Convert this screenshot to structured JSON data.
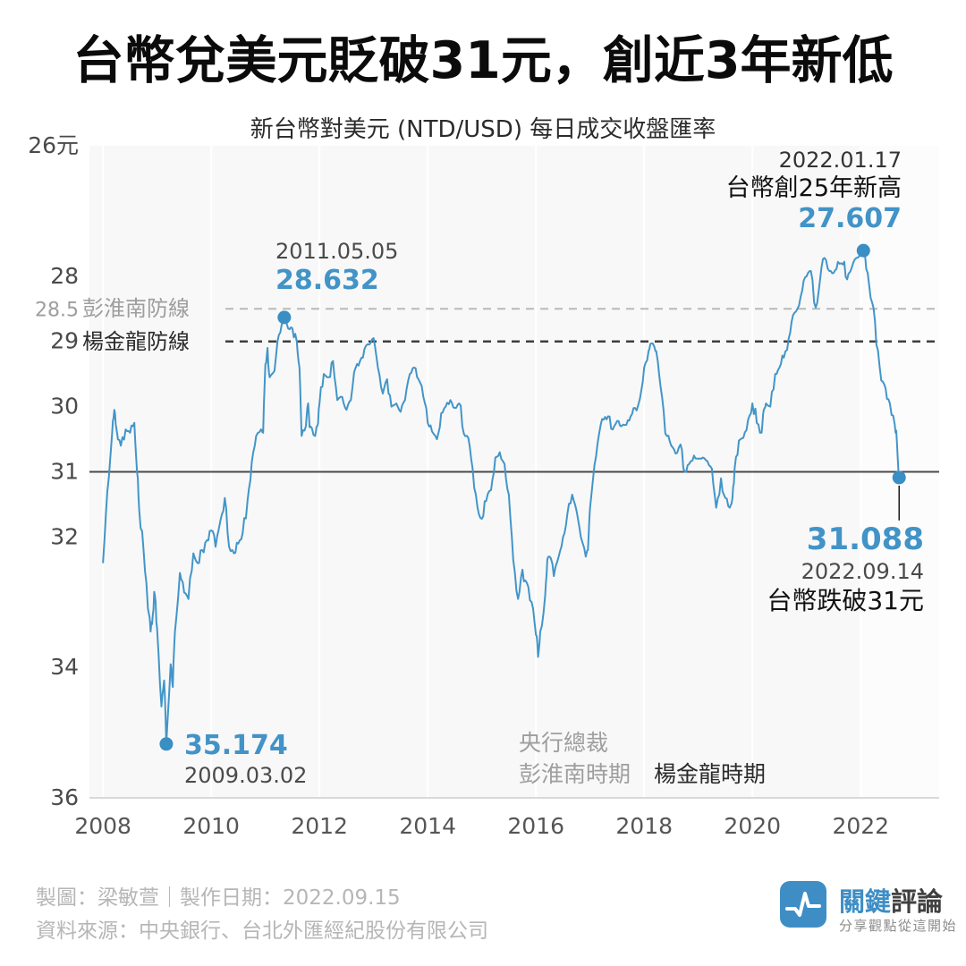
{
  "header": {
    "title": "台幣兌美元貶破31元，創近3年新低",
    "subtitle": "新台幣對美元 (NTD/USD) 每日成交收盤匯率"
  },
  "defense_lines": {
    "peng_label": "彭淮南防線",
    "yang_label": "楊金龍防線"
  },
  "annotations": {
    "peak2011": {
      "date": "2011.05.05",
      "value": "28.632"
    },
    "high2022": {
      "date": "2022.01.17",
      "text": "台幣創25年新高",
      "value": "27.607"
    },
    "low2009": {
      "value": "35.174",
      "date": "2009.03.02"
    },
    "low2022": {
      "value": "31.088",
      "date": "2022.09.14",
      "text": "台幣跌破31元"
    }
  },
  "era_labels": {
    "governor": "央行總裁",
    "peng": "彭淮南時期",
    "yang": "楊金龍時期"
  },
  "footer": {
    "credit": "製圖：梁敏萱｜製作日期：2022.09.15",
    "source": "資料來源：中央銀行、台北外匯經紀股份有限公司"
  },
  "brand": {
    "name_primary": "關鍵",
    "name_secondary": "評論",
    "tagline": "分享觀點從這開始",
    "color": "#3e8ec5"
  },
  "colors": {
    "line": "#4295c8",
    "dot": "#398ec4",
    "accent_text": "#4293c7",
    "plot_bg": "#f8f8f8",
    "grid": "#ffffff",
    "axis": "#d9d9d9",
    "dashed_light": "#b9b9b9",
    "dashed_dark": "#3f3f3f",
    "solid_ref": "#4a4a4a"
  },
  "chart_data": {
    "type": "line",
    "title": "新台幣對美元 (NTD/USD) 每日成交收盤匯率",
    "xlabel": "",
    "ylabel": "元",
    "xlim": [
      2007.75,
      2023.45
    ],
    "ylim": [
      26,
      36
    ],
    "y_inverted": true,
    "grid": "vertical-2yr",
    "legend_position": "none",
    "xticks": [
      {
        "t": 2008,
        "label": "2008"
      },
      {
        "t": 2010,
        "label": "2010"
      },
      {
        "t": 2012,
        "label": "2012"
      },
      {
        "t": 2014,
        "label": "2014"
      },
      {
        "t": 2016,
        "label": "2016"
      },
      {
        "t": 2018,
        "label": "2018"
      },
      {
        "t": 2020,
        "label": "2020"
      },
      {
        "t": 2022,
        "label": "2022"
      }
    ],
    "yticks": [
      {
        "v": 26,
        "label": "26元"
      },
      {
        "v": 28,
        "label": "28"
      },
      {
        "v": 28.5,
        "label": "28.5",
        "muted": true
      },
      {
        "v": 29,
        "label": "29"
      },
      {
        "v": 30,
        "label": "30"
      },
      {
        "v": 31,
        "label": "31"
      },
      {
        "v": 32,
        "label": "32"
      },
      {
        "v": 34,
        "label": "34"
      },
      {
        "v": 36,
        "label": "36"
      }
    ],
    "gridline_years": [
      2008,
      2010,
      2012,
      2014,
      2016,
      2018,
      2020,
      2022
    ],
    "reference_lines": [
      {
        "v": 28.5,
        "label": "彭淮南防線",
        "style": "dashed",
        "color": "#b9b9b9",
        "width": 2
      },
      {
        "v": 29,
        "label": "楊金龍防線",
        "style": "dashed",
        "color": "#3f3f3f",
        "width": 2.5
      },
      {
        "v": 31,
        "label": "",
        "style": "solid",
        "color": "#4a4a4a",
        "width": 2
      }
    ],
    "markers": [
      {
        "t": 2009.17,
        "v": 35.174,
        "label": "35.174",
        "date": "2009.03.02"
      },
      {
        "t": 2011.35,
        "v": 28.632,
        "label": "28.632",
        "date": "2011.05.05"
      },
      {
        "t": 2022.05,
        "v": 27.607,
        "label": "27.607",
        "date": "2022.01.17"
      },
      {
        "t": 2022.71,
        "v": 31.088,
        "label": "31.088",
        "date": "2022.09.14",
        "stem": true
      }
    ],
    "series": [
      {
        "name": "NTD/USD",
        "color": "#4295c8",
        "points": [
          [
            2008.0,
            32.4
          ],
          [
            2008.08,
            31.3
          ],
          [
            2008.17,
            30.4
          ],
          [
            2008.21,
            30.05
          ],
          [
            2008.25,
            30.35
          ],
          [
            2008.33,
            30.6
          ],
          [
            2008.42,
            30.35
          ],
          [
            2008.5,
            30.4
          ],
          [
            2008.58,
            30.25
          ],
          [
            2008.63,
            31.0
          ],
          [
            2008.67,
            31.6
          ],
          [
            2008.75,
            32.2
          ],
          [
            2008.83,
            33.1
          ],
          [
            2008.88,
            33.45
          ],
          [
            2008.92,
            33.2
          ],
          [
            2008.96,
            32.9
          ],
          [
            2009.0,
            33.4
          ],
          [
            2009.08,
            34.6
          ],
          [
            2009.13,
            34.2
          ],
          [
            2009.17,
            35.174
          ],
          [
            2009.25,
            33.95
          ],
          [
            2009.29,
            34.3
          ],
          [
            2009.33,
            33.45
          ],
          [
            2009.42,
            32.55
          ],
          [
            2009.5,
            32.85
          ],
          [
            2009.58,
            32.95
          ],
          [
            2009.67,
            32.25
          ],
          [
            2009.75,
            32.4
          ],
          [
            2009.83,
            32.2
          ],
          [
            2009.92,
            32.05
          ],
          [
            2010.0,
            31.9
          ],
          [
            2010.08,
            32.15
          ],
          [
            2010.17,
            31.75
          ],
          [
            2010.25,
            31.4
          ],
          [
            2010.33,
            32.15
          ],
          [
            2010.42,
            32.25
          ],
          [
            2010.5,
            32.1
          ],
          [
            2010.58,
            31.95
          ],
          [
            2010.67,
            31.45
          ],
          [
            2010.75,
            30.85
          ],
          [
            2010.83,
            30.45
          ],
          [
            2010.92,
            30.35
          ],
          [
            2010.96,
            30.4
          ],
          [
            2011.0,
            29.35
          ],
          [
            2011.04,
            29.1
          ],
          [
            2011.08,
            29.55
          ],
          [
            2011.17,
            29.45
          ],
          [
            2011.25,
            28.9
          ],
          [
            2011.33,
            28.7
          ],
          [
            2011.35,
            28.632
          ],
          [
            2011.42,
            28.8
          ],
          [
            2011.5,
            28.8
          ],
          [
            2011.58,
            29.0
          ],
          [
            2011.63,
            29.4
          ],
          [
            2011.67,
            30.45
          ],
          [
            2011.75,
            30.3
          ],
          [
            2011.79,
            29.95
          ],
          [
            2011.83,
            30.3
          ],
          [
            2011.92,
            30.45
          ],
          [
            2011.96,
            30.3
          ],
          [
            2012.0,
            29.95
          ],
          [
            2012.08,
            29.5
          ],
          [
            2012.17,
            29.55
          ],
          [
            2012.25,
            29.3
          ],
          [
            2012.33,
            29.9
          ],
          [
            2012.42,
            29.85
          ],
          [
            2012.5,
            30.05
          ],
          [
            2012.58,
            29.9
          ],
          [
            2012.67,
            29.4
          ],
          [
            2012.75,
            29.3
          ],
          [
            2012.83,
            29.12
          ],
          [
            2012.92,
            29.05
          ],
          [
            2013.0,
            28.95
          ],
          [
            2013.08,
            29.4
          ],
          [
            2013.17,
            29.8
          ],
          [
            2013.25,
            29.58
          ],
          [
            2013.33,
            30.0
          ],
          [
            2013.42,
            29.95
          ],
          [
            2013.5,
            30.08
          ],
          [
            2013.58,
            29.9
          ],
          [
            2013.67,
            29.5
          ],
          [
            2013.75,
            29.4
          ],
          [
            2013.83,
            29.58
          ],
          [
            2013.92,
            29.85
          ],
          [
            2014.0,
            30.25
          ],
          [
            2014.08,
            30.38
          ],
          [
            2014.17,
            30.5
          ],
          [
            2014.25,
            30.1
          ],
          [
            2014.33,
            30.0
          ],
          [
            2014.42,
            29.9
          ],
          [
            2014.5,
            30.02
          ],
          [
            2014.58,
            29.95
          ],
          [
            2014.67,
            30.42
          ],
          [
            2014.75,
            30.48
          ],
          [
            2014.83,
            30.95
          ],
          [
            2014.92,
            31.55
          ],
          [
            2015.0,
            31.72
          ],
          [
            2015.08,
            31.45
          ],
          [
            2015.17,
            31.28
          ],
          [
            2015.25,
            30.78
          ],
          [
            2015.33,
            30.7
          ],
          [
            2015.42,
            30.88
          ],
          [
            2015.5,
            31.35
          ],
          [
            2015.58,
            32.35
          ],
          [
            2015.67,
            32.95
          ],
          [
            2015.75,
            32.5
          ],
          [
            2015.83,
            32.7
          ],
          [
            2015.92,
            33.0
          ],
          [
            2016.0,
            33.5
          ],
          [
            2016.04,
            33.838
          ],
          [
            2016.08,
            33.45
          ],
          [
            2016.17,
            32.9
          ],
          [
            2016.21,
            32.35
          ],
          [
            2016.25,
            32.3
          ],
          [
            2016.33,
            32.6
          ],
          [
            2016.42,
            32.3
          ],
          [
            2016.5,
            32.0
          ],
          [
            2016.58,
            31.65
          ],
          [
            2016.67,
            31.35
          ],
          [
            2016.75,
            31.6
          ],
          [
            2016.83,
            32.0
          ],
          [
            2016.92,
            32.3
          ],
          [
            2016.96,
            32.2
          ],
          [
            2017.0,
            31.55
          ],
          [
            2017.08,
            30.9
          ],
          [
            2017.17,
            30.4
          ],
          [
            2017.25,
            30.2
          ],
          [
            2017.33,
            30.15
          ],
          [
            2017.42,
            30.35
          ],
          [
            2017.5,
            30.22
          ],
          [
            2017.58,
            30.3
          ],
          [
            2017.67,
            30.28
          ],
          [
            2017.75,
            30.15
          ],
          [
            2017.83,
            30.02
          ],
          [
            2017.92,
            29.88
          ],
          [
            2018.0,
            29.4
          ],
          [
            2018.08,
            29.15
          ],
          [
            2018.13,
            29.03
          ],
          [
            2018.21,
            29.15
          ],
          [
            2018.25,
            29.3
          ],
          [
            2018.33,
            29.85
          ],
          [
            2018.42,
            30.45
          ],
          [
            2018.5,
            30.6
          ],
          [
            2018.58,
            30.72
          ],
          [
            2018.67,
            30.58
          ],
          [
            2018.75,
            31.0
          ],
          [
            2018.83,
            30.88
          ],
          [
            2018.92,
            30.75
          ],
          [
            2019.0,
            30.8
          ],
          [
            2019.08,
            30.78
          ],
          [
            2019.17,
            30.84
          ],
          [
            2019.25,
            30.95
          ],
          [
            2019.33,
            31.55
          ],
          [
            2019.42,
            31.1
          ],
          [
            2019.5,
            31.4
          ],
          [
            2019.58,
            31.55
          ],
          [
            2019.63,
            31.4
          ],
          [
            2019.67,
            30.95
          ],
          [
            2019.75,
            30.52
          ],
          [
            2019.83,
            30.48
          ],
          [
            2019.92,
            30.2
          ],
          [
            2020.0,
            29.95
          ],
          [
            2020.08,
            30.25
          ],
          [
            2020.17,
            30.4
          ],
          [
            2020.21,
            30.05
          ],
          [
            2020.25,
            29.95
          ],
          [
            2020.33,
            30.0
          ],
          [
            2020.42,
            29.5
          ],
          [
            2020.5,
            29.4
          ],
          [
            2020.58,
            29.25
          ],
          [
            2020.67,
            28.95
          ],
          [
            2020.75,
            28.6
          ],
          [
            2020.83,
            28.5
          ],
          [
            2020.92,
            28.22
          ],
          [
            2021.0,
            28.0
          ],
          [
            2021.08,
            27.92
          ],
          [
            2021.17,
            28.48
          ],
          [
            2021.25,
            28.05
          ],
          [
            2021.33,
            27.72
          ],
          [
            2021.42,
            27.92
          ],
          [
            2021.5,
            27.95
          ],
          [
            2021.58,
            27.78
          ],
          [
            2021.67,
            27.82
          ],
          [
            2021.75,
            28.05
          ],
          [
            2021.83,
            27.88
          ],
          [
            2021.92,
            27.72
          ],
          [
            2022.0,
            27.68
          ],
          [
            2022.05,
            27.607
          ],
          [
            2022.13,
            27.95
          ],
          [
            2022.21,
            28.4
          ],
          [
            2022.29,
            29.05
          ],
          [
            2022.38,
            29.6
          ],
          [
            2022.46,
            29.72
          ],
          [
            2022.54,
            29.95
          ],
          [
            2022.63,
            30.28
          ],
          [
            2022.67,
            30.55
          ],
          [
            2022.71,
            31.088
          ]
        ]
      }
    ]
  }
}
